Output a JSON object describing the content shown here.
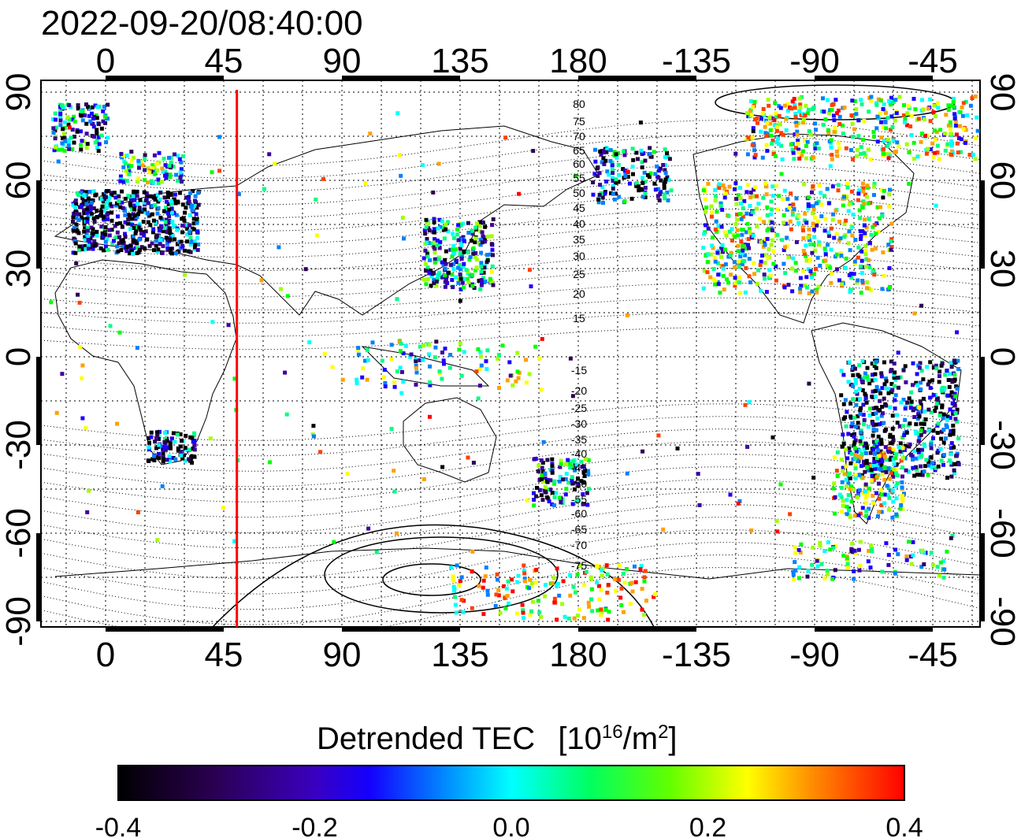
{
  "timestamp": "2022-09-20/08:40:00",
  "top_axis_labels": [
    "0",
    "45",
    "90",
    "135",
    "180",
    "-135",
    "-90",
    "-45"
  ],
  "bottom_axis_labels": [
    "0",
    "45",
    "90",
    "135",
    "180",
    "-135",
    "-90",
    "-45"
  ],
  "left_axis_labels": [
    "90",
    "60",
    "30",
    "0",
    "-30",
    "-60",
    "-90"
  ],
  "right_axis_labels": [
    "90",
    "60",
    "30",
    "0",
    "-30",
    "-60",
    "-90"
  ],
  "contour_labels_north": [
    "80",
    "75",
    "70",
    "65",
    "60",
    "55",
    "50",
    "45",
    "40",
    "35",
    "30",
    "25",
    "20",
    "15"
  ],
  "contour_labels_south": [
    "-15",
    "-20",
    "-25",
    "-30",
    "-35",
    "-40",
    "-45",
    "-50",
    "-55",
    "-60",
    "-65",
    "-70",
    "-75"
  ],
  "marker_line": {
    "longitude": 50,
    "color": "#ff0000"
  },
  "colorbar": {
    "title": "Detrended TEC",
    "units_base": "[10",
    "units_exp": "16",
    "units_mid": "/m",
    "units_exp2": "2",
    "units_end": "]",
    "tick_labels": [
      "-0.4",
      "-0.2",
      "0.0",
      "0.2",
      "0.4"
    ],
    "range": [
      -0.4,
      0.4
    ],
    "colors": [
      "#000000",
      "#2a0050",
      "#3c00a0",
      "#1e00ff",
      "#0080ff",
      "#00ffff",
      "#00ff80",
      "#00ff00",
      "#a0ff00",
      "#ffff00",
      "#ffa000",
      "#ff4000",
      "#ff0000"
    ]
  },
  "map_frame_color": "#000000",
  "grid_color": "#000000"
}
